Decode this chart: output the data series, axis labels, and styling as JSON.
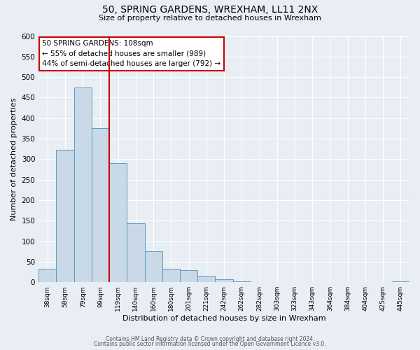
{
  "title": "50, SPRING GARDENS, WREXHAM, LL11 2NX",
  "subtitle": "Size of property relative to detached houses in Wrexham",
  "xlabel": "Distribution of detached houses by size in Wrexham",
  "ylabel": "Number of detached properties",
  "bar_labels": [
    "38sqm",
    "58sqm",
    "79sqm",
    "99sqm",
    "119sqm",
    "140sqm",
    "160sqm",
    "180sqm",
    "201sqm",
    "221sqm",
    "242sqm",
    "262sqm",
    "282sqm",
    "303sqm",
    "323sqm",
    "343sqm",
    "364sqm",
    "384sqm",
    "404sqm",
    "425sqm",
    "445sqm"
  ],
  "bar_values": [
    32,
    322,
    474,
    375,
    290,
    143,
    75,
    32,
    29,
    16,
    7,
    2,
    1,
    1,
    0,
    0,
    0,
    0,
    0,
    0,
    2
  ],
  "bar_color": "#c9d9e8",
  "bar_edge_color": "#5b9abf",
  "background_color": "#e8eef4",
  "grid_color": "#ffffff",
  "annotation_line1": "50 SPRING GARDENS: 108sqm",
  "annotation_line2": "← 55% of detached houses are smaller (989)",
  "annotation_line3": "44% of semi-detached houses are larger (792) →",
  "annotation_box_edge_color": "#cc0000",
  "annotation_box_bg": "#ffffff",
  "vline_color": "#cc0000",
  "ylim": [
    0,
    600
  ],
  "yticks": [
    0,
    50,
    100,
    150,
    200,
    250,
    300,
    350,
    400,
    450,
    500,
    550,
    600
  ],
  "footer_line1": "Contains HM Land Registry data © Crown copyright and database right 2024.",
  "footer_line2": "Contains public sector information licensed under the Open Government Licence v3.0.",
  "n_bars": 21,
  "bar_width": 1.0
}
